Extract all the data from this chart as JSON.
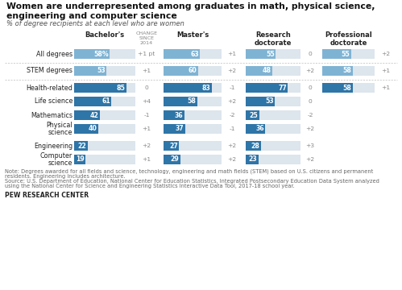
{
  "title": "Women are underrepresented among graduates in math, physical science,\nengineering and computer science",
  "subtitle": "% of degree recipients at each level who are women",
  "rows": [
    {
      "label": "All degrees",
      "bachelor": 58,
      "b_change": "+1 pt",
      "master": 63,
      "m_change": "+1",
      "research": 55,
      "r_change": "0",
      "professional": 55,
      "p_change": "+2",
      "group": "all"
    },
    {
      "label": "STEM degrees",
      "bachelor": 53,
      "b_change": "+1",
      "master": 60,
      "m_change": "+2",
      "research": 48,
      "r_change": "+2",
      "professional": 58,
      "p_change": "+1",
      "group": "stem"
    },
    {
      "label": "Health-related",
      "bachelor": 85,
      "b_change": "0",
      "master": 83,
      "m_change": "-1",
      "research": 77,
      "r_change": "0",
      "professional": 58,
      "p_change": "+1",
      "group": "sub"
    },
    {
      "label": "Life science",
      "bachelor": 61,
      "b_change": "+4",
      "master": 58,
      "m_change": "+2",
      "research": 53,
      "r_change": "0",
      "professional": null,
      "p_change": null,
      "group": "sub"
    },
    {
      "label": "Mathematics",
      "bachelor": 42,
      "b_change": "-1",
      "master": 36,
      "m_change": "-2",
      "research": 25,
      "r_change": "-2",
      "professional": null,
      "p_change": null,
      "group": "sub"
    },
    {
      "label": "Physical\nscience",
      "bachelor": 40,
      "b_change": "+1",
      "master": 37,
      "m_change": "-1",
      "research": 36,
      "r_change": "+2",
      "professional": null,
      "p_change": null,
      "group": "sub"
    },
    {
      "label": "Engineering",
      "bachelor": 22,
      "b_change": "+2",
      "master": 27,
      "m_change": "+2",
      "research": 28,
      "r_change": "+3",
      "professional": null,
      "p_change": null,
      "group": "sub"
    },
    {
      "label": "Computer\nscience",
      "bachelor": 19,
      "b_change": "+1",
      "master": 29,
      "m_change": "+2",
      "research": 23,
      "r_change": "+2",
      "professional": null,
      "p_change": null,
      "group": "sub"
    }
  ],
  "colors": {
    "all_bar": "#7fb3d3",
    "stem_bar": "#7fb3d3",
    "sub_bar": "#2e75a8",
    "bar_bg": "#dde5ed",
    "text_white": "#ffffff",
    "text_dark": "#222222",
    "change_color": "#888888",
    "title_color": "#111111",
    "subtitle_color": "#555555",
    "separator_color": "#bbbbbb",
    "header_color": "#222222",
    "note_color": "#666666"
  },
  "note1": "Note: Degrees awarded for all fields and science, technology, engineering and math fields (STEM) based on U.S. citizens and permanent",
  "note2": "residents. Engineering includes architecture.",
  "note3": "Source: U.S. Department of Education, National Center for Education Statistics, Integrated Postsecondary Education Data System analyzed",
  "note4": "using the National Center for Science and Engineering Statistics Interactive Data Tool, 2017-18 school year.",
  "source_label": "PEW RESEARCH CENTER"
}
